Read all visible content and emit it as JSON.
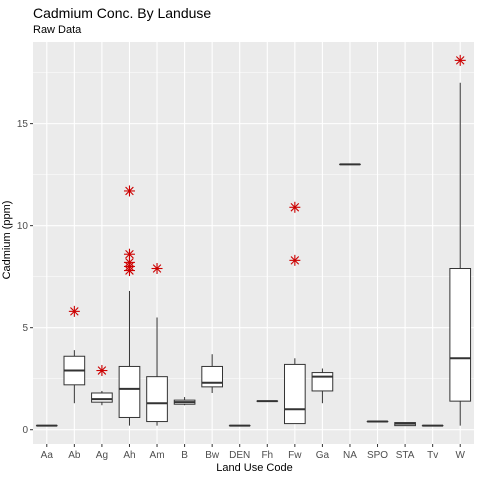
{
  "chart_data": {
    "type": "boxplot",
    "title": "Cadmium Conc. By Landuse",
    "subtitle": "Raw Data",
    "xlabel": "Land Use Code",
    "ylabel": "Cadmium (ppm)",
    "ylim": [
      -0.7,
      19.0
    ],
    "yticks": [
      0,
      5,
      10,
      15
    ],
    "grid": true,
    "colors": {
      "panel": "#ebebeb",
      "grid": "#ffffff",
      "box": "#333333",
      "outlier": "#cc0000"
    },
    "categories": [
      "Aa",
      "Ab",
      "Ag",
      "Ah",
      "Am",
      "B",
      "Bw",
      "DEN",
      "Fh",
      "Fw",
      "Ga",
      "NA",
      "SPO",
      "STA",
      "Tv",
      "W"
    ],
    "boxes": [
      {
        "cat": "Aa",
        "min": 0.2,
        "q1": 0.2,
        "median": 0.2,
        "q3": 0.2,
        "max": 0.2,
        "outliers": []
      },
      {
        "cat": "Ab",
        "min": 1.3,
        "q1": 2.2,
        "median": 2.9,
        "q3": 3.6,
        "max": 3.9,
        "outliers": [
          5.8
        ]
      },
      {
        "cat": "Ag",
        "min": 1.2,
        "q1": 1.35,
        "median": 1.5,
        "q3": 1.8,
        "max": 1.9,
        "outliers": [
          2.9
        ]
      },
      {
        "cat": "Ah",
        "min": 0.2,
        "q1": 0.6,
        "median": 2.0,
        "q3": 3.1,
        "max": 6.8,
        "outliers": [
          7.8,
          8.0,
          8.2,
          8.6,
          11.7
        ]
      },
      {
        "cat": "Am",
        "min": 0.2,
        "q1": 0.4,
        "median": 1.3,
        "q3": 2.6,
        "max": 5.5,
        "outliers": [
          7.9
        ]
      },
      {
        "cat": "B",
        "min": 1.2,
        "q1": 1.25,
        "median": 1.35,
        "q3": 1.45,
        "max": 1.6,
        "outliers": []
      },
      {
        "cat": "Bw",
        "min": 1.8,
        "q1": 2.1,
        "median": 2.3,
        "q3": 3.1,
        "max": 3.7,
        "outliers": []
      },
      {
        "cat": "DEN",
        "min": 0.2,
        "q1": 0.2,
        "median": 0.2,
        "q3": 0.2,
        "max": 0.2,
        "outliers": []
      },
      {
        "cat": "Fh",
        "min": 1.4,
        "q1": 1.4,
        "median": 1.4,
        "q3": 1.4,
        "max": 1.4,
        "outliers": []
      },
      {
        "cat": "Fw",
        "min": 0.3,
        "q1": 0.3,
        "median": 1.0,
        "q3": 3.2,
        "max": 3.5,
        "outliers": [
          8.3,
          10.9
        ]
      },
      {
        "cat": "Ga",
        "min": 1.3,
        "q1": 1.9,
        "median": 2.6,
        "q3": 2.8,
        "max": 3.0,
        "outliers": []
      },
      {
        "cat": "NA",
        "min": 13.0,
        "q1": 13.0,
        "median": 13.0,
        "q3": 13.0,
        "max": 13.0,
        "outliers": []
      },
      {
        "cat": "SPO",
        "min": 0.4,
        "q1": 0.4,
        "median": 0.4,
        "q3": 0.4,
        "max": 0.4,
        "outliers": []
      },
      {
        "cat": "STA",
        "min": 0.2,
        "q1": 0.2,
        "median": 0.3,
        "q3": 0.35,
        "max": 0.35,
        "outliers": []
      },
      {
        "cat": "Tv",
        "min": 0.2,
        "q1": 0.2,
        "median": 0.2,
        "q3": 0.2,
        "max": 0.2,
        "outliers": []
      },
      {
        "cat": "W",
        "min": 0.2,
        "q1": 1.4,
        "median": 3.5,
        "q3": 7.9,
        "max": 17.0,
        "outliers": [
          18.1
        ]
      }
    ]
  }
}
